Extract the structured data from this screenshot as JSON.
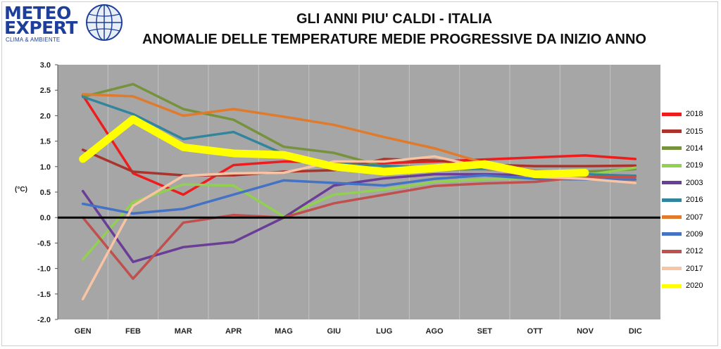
{
  "logo": {
    "line1": "METEO",
    "line2": "EXPERT",
    "sub": "CLIMA & AMBIENTE"
  },
  "colors": {
    "plot_bg": "#a6a6a6",
    "zero_line": "#000000",
    "grid": "#c4c4c4"
  },
  "chart_data": {
    "type": "line",
    "title": "GLI ANNI PIU' CALDI - ITALIA",
    "subtitle": "ANOMALIE DELLE TEMPERATURE MEDIE PROGRESSIVE DA INIZIO ANNO",
    "ylabel": "(°C)",
    "xlabel": "",
    "ylim": [
      -2.0,
      3.0
    ],
    "yticks": [
      "3.0",
      "2.5",
      "2.0",
      "1.5",
      "1.0",
      "0.5",
      "0.0",
      "-0.5",
      "-1.0",
      "-1.5",
      "-2.0"
    ],
    "grid": "vertical",
    "legend_position": "right",
    "categories": [
      "GEN",
      "FEB",
      "MAR",
      "APR",
      "MAG",
      "GIU",
      "LUG",
      "AGO",
      "SET",
      "OTT",
      "NOV",
      "DIC"
    ],
    "series": [
      {
        "name": "2018",
        "color": "#ee1c1c",
        "values": [
          2.4,
          0.87,
          0.45,
          1.03,
          1.1,
          1.08,
          1.07,
          1.1,
          1.14,
          1.18,
          1.22,
          1.15
        ]
      },
      {
        "name": "2015",
        "color": "#a8342c",
        "values": [
          1.33,
          0.9,
          0.83,
          0.83,
          0.9,
          0.93,
          1.15,
          1.12,
          1.04,
          1.01,
          1.01,
          1.02
        ]
      },
      {
        "name": "2014",
        "color": "#77923c",
        "values": [
          2.37,
          2.62,
          2.13,
          1.92,
          1.39,
          1.27,
          1.0,
          0.94,
          0.95,
          0.88,
          0.9,
          0.95
        ]
      },
      {
        "name": "2019",
        "color": "#92d050",
        "values": [
          -0.82,
          0.3,
          0.65,
          0.63,
          0.02,
          0.45,
          0.55,
          0.7,
          0.75,
          0.78,
          0.83,
          0.98
        ]
      },
      {
        "name": "2003",
        "color": "#6a3d97",
        "values": [
          0.52,
          -0.87,
          -0.58,
          -0.48,
          0.0,
          0.63,
          0.77,
          0.85,
          0.85,
          0.83,
          0.83,
          0.82
        ]
      },
      {
        "name": "2016",
        "color": "#31859c",
        "values": [
          2.37,
          2.03,
          1.54,
          1.68,
          1.25,
          1.05,
          1.02,
          0.97,
          0.96,
          0.9,
          0.85,
          0.82
        ]
      },
      {
        "name": "2007",
        "color": "#e07a2c",
        "values": [
          2.42,
          2.38,
          2.0,
          2.13,
          1.98,
          1.82,
          1.58,
          1.36,
          1.07,
          0.92,
          0.82,
          0.7
        ]
      },
      {
        "name": "2009",
        "color": "#4472c4",
        "values": [
          0.27,
          0.08,
          0.17,
          0.45,
          0.73,
          0.68,
          0.63,
          0.76,
          0.83,
          0.76,
          0.75,
          0.75
        ]
      },
      {
        "name": "2012",
        "color": "#c0504d",
        "values": [
          0.0,
          -1.2,
          -0.1,
          0.05,
          0.0,
          0.28,
          0.45,
          0.62,
          0.67,
          0.7,
          0.8,
          0.8
        ]
      },
      {
        "name": "2017",
        "color": "#f9c4a4",
        "values": [
          -1.6,
          0.23,
          0.82,
          0.87,
          0.88,
          1.1,
          1.1,
          1.2,
          0.98,
          0.8,
          0.76,
          0.68
        ]
      },
      {
        "name": "2020",
        "color": "#ffff00",
        "values": [
          1.15,
          1.93,
          1.38,
          1.26,
          1.23,
          1.0,
          0.9,
          0.97,
          1.05,
          0.85,
          0.88,
          null
        ]
      }
    ]
  }
}
